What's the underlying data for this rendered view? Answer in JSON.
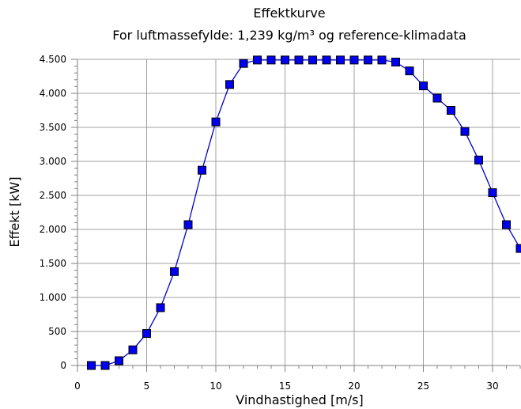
{
  "chart_data": {
    "type": "line",
    "title": "Effektkurve",
    "subtitle": "For luftmassefylde: 1,239 kg/m³ og reference-klimadata",
    "xlabel": "Vindhastighed [m/s]",
    "ylabel": "Effekt [kW]",
    "xlim": [
      0,
      32
    ],
    "ylim": [
      0,
      4500
    ],
    "x_ticks": [
      0,
      5,
      10,
      15,
      20,
      25,
      30
    ],
    "x_tick_labels": [
      "0",
      "5",
      "10",
      "15",
      "20",
      "25",
      "30"
    ],
    "y_ticks": [
      0,
      500,
      1000,
      1500,
      2000,
      2500,
      3000,
      3500,
      4000,
      4500
    ],
    "y_tick_labels": [
      "0",
      "500",
      "1.000",
      "1.500",
      "2.000",
      "2.500",
      "3.000",
      "3.500",
      "4.000",
      "4.500"
    ],
    "grid": true,
    "line_color": "#0000cc",
    "marker_color": "#0000ee",
    "series": [
      {
        "x": [
          1,
          2,
          3,
          4,
          5,
          6,
          7,
          8,
          9,
          10,
          11,
          12,
          13,
          14,
          15,
          16,
          17,
          18,
          19,
          20,
          21,
          22,
          23,
          24,
          25,
          26,
          27,
          28,
          29,
          30,
          31,
          32
        ],
        "y": [
          0,
          0,
          70,
          230,
          470,
          850,
          1380,
          2070,
          2870,
          3580,
          4130,
          4440,
          4490,
          4490,
          4490,
          4490,
          4490,
          4490,
          4490,
          4490,
          4490,
          4490,
          4460,
          4330,
          4110,
          3930,
          3750,
          3440,
          3020,
          2540,
          2070,
          1720
        ]
      }
    ]
  }
}
